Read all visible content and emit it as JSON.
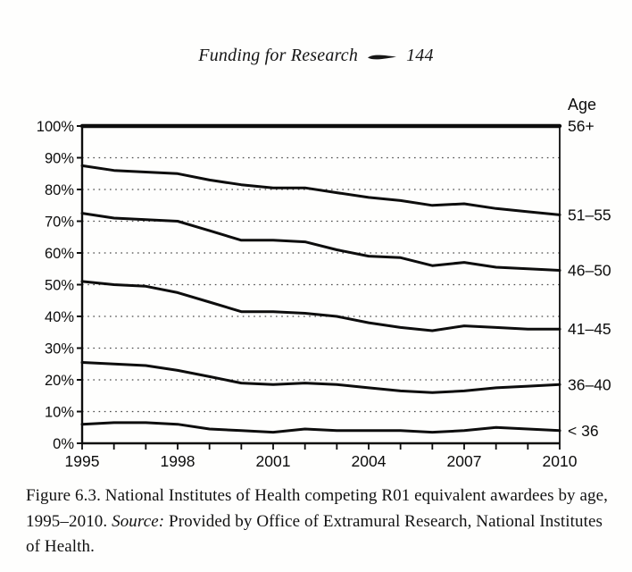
{
  "header": {
    "title": "Funding for Research",
    "page_number": "144",
    "ornament": "tapered-dash"
  },
  "caption": {
    "main": "Figure 6.3.  National Institutes of Health competing R01 equivalent awardees by age, 1995–2010. ",
    "source_label": "Source:",
    "source_text": " Provided by Office of Extramural Research, National Institutes of Health."
  },
  "chart_data": {
    "type": "line",
    "title": "",
    "xlabel": "",
    "ylabel": "",
    "x": [
      1995,
      1996,
      1997,
      1998,
      1999,
      2000,
      2001,
      2002,
      2003,
      2004,
      2005,
      2006,
      2007,
      2008,
      2009,
      2010
    ],
    "x_tick_labels": [
      "1995",
      "1998",
      "2001",
      "2004",
      "2007",
      "2010"
    ],
    "xlim": [
      1995,
      2010
    ],
    "ylim": [
      0,
      100
    ],
    "y_ticks": [
      0,
      10,
      20,
      30,
      40,
      50,
      60,
      70,
      80,
      90,
      100
    ],
    "y_tick_suffix": "%",
    "grid": "horizontal-dotted",
    "legend_title": "Age",
    "legend_position": "right",
    "line_color": "#0d0d0d",
    "series": [
      {
        "name": "56+",
        "values": [
          100,
          100,
          100,
          100,
          100,
          100,
          100,
          100,
          100,
          100,
          100,
          100,
          100,
          100,
          100,
          100
        ]
      },
      {
        "name": "51–55",
        "values": [
          87.5,
          86,
          85.5,
          85,
          83,
          81.5,
          80.5,
          80.5,
          79,
          77.5,
          76.5,
          75,
          75.5,
          74,
          73,
          72
        ]
      },
      {
        "name": "46–50",
        "values": [
          72.5,
          71,
          70.5,
          70,
          67,
          64,
          64,
          63.5,
          61,
          59,
          58.5,
          56,
          57,
          55.5,
          55,
          54.5
        ]
      },
      {
        "name": "41–45",
        "values": [
          51,
          50,
          49.5,
          47.5,
          44.5,
          41.5,
          41.5,
          41,
          40,
          38,
          36.5,
          35.5,
          37,
          36.5,
          36,
          36
        ]
      },
      {
        "name": "36–40",
        "values": [
          25.5,
          25,
          24.5,
          23,
          21,
          19,
          18.5,
          19,
          18.5,
          17.5,
          16.5,
          16,
          16.5,
          17.5,
          18,
          18.5
        ]
      },
      {
        "name": "< 36",
        "values": [
          6,
          6.5,
          6.5,
          6,
          4.5,
          4,
          3.5,
          4.5,
          4,
          4,
          4,
          3.5,
          4,
          5,
          4.5,
          4
        ]
      }
    ]
  }
}
